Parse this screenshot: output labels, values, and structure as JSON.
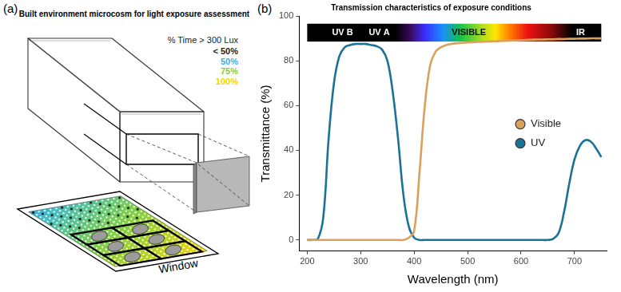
{
  "panel_a": {
    "label": "(a)",
    "title": "Built environment microcosm for light exposure assessment",
    "scale_key": {
      "title": "% Time > 300 Lux",
      "entries": [
        {
          "label": "< 50%",
          "color": "#222222"
        },
        {
          "label": "50%",
          "color": "#2eb5e6"
        },
        {
          "label": "75%",
          "color": "#7fcf3c"
        },
        {
          "label": "100%",
          "color": "#f0d400"
        }
      ]
    },
    "edge_label": "Window"
  },
  "chart_data": {
    "type": "line",
    "panel_label": "(b)",
    "title": "Transmission characteristics of exposure conditions",
    "band_labels": [
      "UV B",
      "UV A",
      "VISIBLE",
      "IR"
    ],
    "x_label": "Wavelength (nm)",
    "y_label": "Transmittance (%)",
    "x": [
      200,
      210,
      220,
      230,
      240,
      250,
      260,
      270,
      280,
      290,
      300,
      310,
      320,
      330,
      340,
      350,
      360,
      370,
      380,
      390,
      400,
      410,
      420,
      430,
      440,
      450,
      460,
      470,
      480,
      490,
      500,
      510,
      520,
      530,
      540,
      550,
      560,
      570,
      580,
      590,
      600,
      610,
      620,
      630,
      640,
      650,
      660,
      670,
      680,
      690,
      700,
      710,
      720,
      730,
      740,
      750
    ],
    "series": [
      {
        "name": "Visible",
        "color": "#d9a15c",
        "values": [
          0,
          0,
          0,
          0,
          0,
          0,
          0,
          0,
          0,
          0,
          0,
          0,
          0,
          0,
          0,
          0,
          0,
          0,
          0,
          1,
          4,
          30,
          60,
          78,
          84,
          86,
          87,
          87.5,
          87.8,
          88,
          88.2,
          88.3,
          88.4,
          88.5,
          88.6,
          88.7,
          88.8,
          88.9,
          89,
          89.1,
          89.2,
          89.3,
          89.4,
          89.5,
          89.5,
          89.6,
          89.6,
          89.7,
          89.7,
          89.8,
          89.8,
          89.9,
          89.9,
          90,
          90,
          90
        ]
      },
      {
        "name": "UV",
        "color": "#1b7297",
        "values": [
          0,
          0,
          0.5,
          10,
          45,
          70,
          82,
          86,
          87,
          87.5,
          87.5,
          87.5,
          87,
          86.5,
          85,
          80,
          66,
          45,
          20,
          6,
          1,
          0,
          0,
          0,
          0,
          0,
          0,
          0,
          0,
          0,
          0,
          0,
          0,
          0,
          0,
          0,
          0,
          0,
          0,
          0,
          0,
          0,
          0,
          0,
          0,
          0,
          0.5,
          3,
          12,
          25,
          36,
          42,
          44.5,
          44,
          41,
          37
        ]
      }
    ],
    "xlim": [
      185,
      760
    ],
    "xticks": [
      200,
      300,
      400,
      500,
      600,
      700
    ],
    "ylim": [
      -5,
      100
    ],
    "yticks": [
      0,
      20,
      40,
      60,
      80,
      100
    ],
    "grid": false,
    "legend": "right",
    "marker": "none",
    "line_style": "solid"
  }
}
